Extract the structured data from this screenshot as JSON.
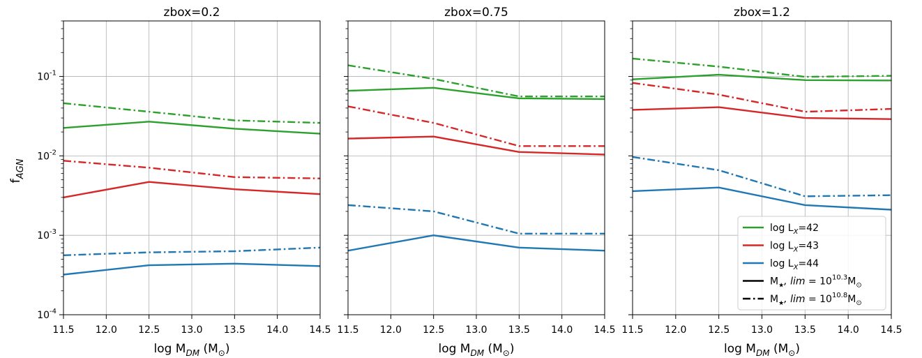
{
  "figure": {
    "ylabel": "f",
    "ylabel_sub": "AGN"
  },
  "legend": {
    "entries": [
      {
        "kind": "color",
        "color": "#2ca02c",
        "pre": "log L",
        "sub": "X",
        "post": "=42"
      },
      {
        "kind": "color",
        "color": "#d62728",
        "pre": "log L",
        "sub": "X",
        "post": "=43"
      },
      {
        "kind": "color",
        "color": "#1f77b4",
        "pre": "log L",
        "sub": "X",
        "post": "=44"
      },
      {
        "kind": "style",
        "style": "solid",
        "pre": "M",
        "star": "★",
        "post_italic": ", lim",
        "eq": " = 10",
        "sup": "10.3",
        "unit": "M",
        "unit_sub": "⊙"
      },
      {
        "kind": "style",
        "style": "dashdot",
        "pre": "M",
        "star": "★",
        "post_italic": ", lim",
        "eq": " = 10",
        "sup": "10.8",
        "unit": "M",
        "unit_sub": "⊙"
      }
    ]
  },
  "colors": {
    "lx42": "#2ca02c",
    "lx43": "#d62728",
    "lx44": "#1f77b4",
    "grid": "#b0b0b0"
  },
  "chart_data": [
    {
      "type": "line",
      "title": "zbox=0.2",
      "xlabel": "log M_DM (M_⊙)",
      "ylabel": "f_AGN",
      "yscale": "log",
      "xlim": [
        11.5,
        14.5
      ],
      "ylim": [
        0.0001,
        0.5
      ],
      "x": [
        11.5,
        12.5,
        13.5,
        14.5
      ],
      "xticks": [
        "11.5",
        "12.0",
        "12.5",
        "13.0",
        "13.5",
        "14.0",
        "14.5"
      ],
      "yticks": [
        "10^-4",
        "10^-3",
        "10^-2",
        "10^-1"
      ],
      "grid": true,
      "series": [
        {
          "name": "log L_X=42, M★,lim=10^10.3",
          "color": "#2ca02c",
          "style": "solid",
          "values": [
            0.0225,
            0.027,
            0.022,
            0.019
          ]
        },
        {
          "name": "log L_X=42, M★,lim=10^10.8",
          "color": "#2ca02c",
          "style": "dashdot",
          "values": [
            0.046,
            0.036,
            0.028,
            0.026
          ]
        },
        {
          "name": "log L_X=43, M★,lim=10^10.3",
          "color": "#d62728",
          "style": "solid",
          "values": [
            0.003,
            0.0047,
            0.0038,
            0.0033
          ]
        },
        {
          "name": "log L_X=43, M★,lim=10^10.8",
          "color": "#d62728",
          "style": "dashdot",
          "values": [
            0.0087,
            0.0071,
            0.0054,
            0.0052
          ]
        },
        {
          "name": "log L_X=44, M★,lim=10^10.3",
          "color": "#1f77b4",
          "style": "solid",
          "values": [
            0.00032,
            0.00042,
            0.00044,
            0.00041
          ]
        },
        {
          "name": "log L_X=44, M★,lim=10^10.8",
          "color": "#1f77b4",
          "style": "dashdot",
          "values": [
            0.00056,
            0.00061,
            0.00063,
            0.0007
          ]
        }
      ]
    },
    {
      "type": "line",
      "title": "zbox=0.75",
      "xlabel": "log M_DM (M_⊙)",
      "yscale": "log",
      "xlim": [
        11.5,
        14.5
      ],
      "ylim": [
        0.0001,
        0.5
      ],
      "x": [
        11.5,
        12.5,
        13.5,
        14.5
      ],
      "xticks": [
        "11.5",
        "12.0",
        "12.5",
        "13.0",
        "13.5",
        "14.0",
        "14.5"
      ],
      "grid": true,
      "series": [
        {
          "name": "log L_X=42, M★,lim=10^10.3",
          "color": "#2ca02c",
          "style": "solid",
          "values": [
            0.066,
            0.072,
            0.053,
            0.052
          ]
        },
        {
          "name": "log L_X=42, M★,lim=10^10.8",
          "color": "#2ca02c",
          "style": "dashdot",
          "values": [
            0.138,
            0.093,
            0.056,
            0.056
          ]
        },
        {
          "name": "log L_X=43, M★,lim=10^10.3",
          "color": "#d62728",
          "style": "solid",
          "values": [
            0.0165,
            0.0175,
            0.0112,
            0.0104
          ]
        },
        {
          "name": "log L_X=43, M★,lim=10^10.8",
          "color": "#d62728",
          "style": "dashdot",
          "values": [
            0.042,
            0.026,
            0.0133,
            0.0133
          ]
        },
        {
          "name": "log L_X=44, M★,lim=10^10.3",
          "color": "#1f77b4",
          "style": "solid",
          "values": [
            0.00064,
            0.001,
            0.0007,
            0.00064
          ]
        },
        {
          "name": "log L_X=44, M★,lim=10^10.8",
          "color": "#1f77b4",
          "style": "dashdot",
          "values": [
            0.0024,
            0.002,
            0.00105,
            0.00105
          ]
        }
      ]
    },
    {
      "type": "line",
      "title": "zbox=1.2",
      "xlabel": "log M_DM (M_⊙)",
      "yscale": "log",
      "xlim": [
        11.5,
        14.5
      ],
      "ylim": [
        0.0001,
        0.5
      ],
      "x": [
        11.5,
        12.5,
        13.5,
        14.5
      ],
      "xticks": [
        "11.5",
        "12.0",
        "12.5",
        "13.0",
        "13.5",
        "14.0",
        "14.5"
      ],
      "grid": true,
      "legend": "lower-right",
      "series": [
        {
          "name": "log L_X=42, M★,lim=10^10.3",
          "color": "#2ca02c",
          "style": "solid",
          "values": [
            0.092,
            0.105,
            0.09,
            0.089
          ]
        },
        {
          "name": "log L_X=42, M★,lim=10^10.8",
          "color": "#2ca02c",
          "style": "dashdot",
          "values": [
            0.168,
            0.133,
            0.099,
            0.102
          ]
        },
        {
          "name": "log L_X=43, M★,lim=10^10.3",
          "color": "#d62728",
          "style": "solid",
          "values": [
            0.038,
            0.041,
            0.03,
            0.029
          ]
        },
        {
          "name": "log L_X=43, M★,lim=10^10.8",
          "color": "#d62728",
          "style": "dashdot",
          "values": [
            0.083,
            0.059,
            0.036,
            0.039
          ]
        },
        {
          "name": "log L_X=44, M★,lim=10^10.3",
          "color": "#1f77b4",
          "style": "solid",
          "values": [
            0.0036,
            0.004,
            0.0024,
            0.0021
          ]
        },
        {
          "name": "log L_X=44, M★,lim=10^10.8",
          "color": "#1f77b4",
          "style": "dashdot",
          "values": [
            0.0097,
            0.0066,
            0.0031,
            0.0032
          ]
        }
      ]
    }
  ]
}
